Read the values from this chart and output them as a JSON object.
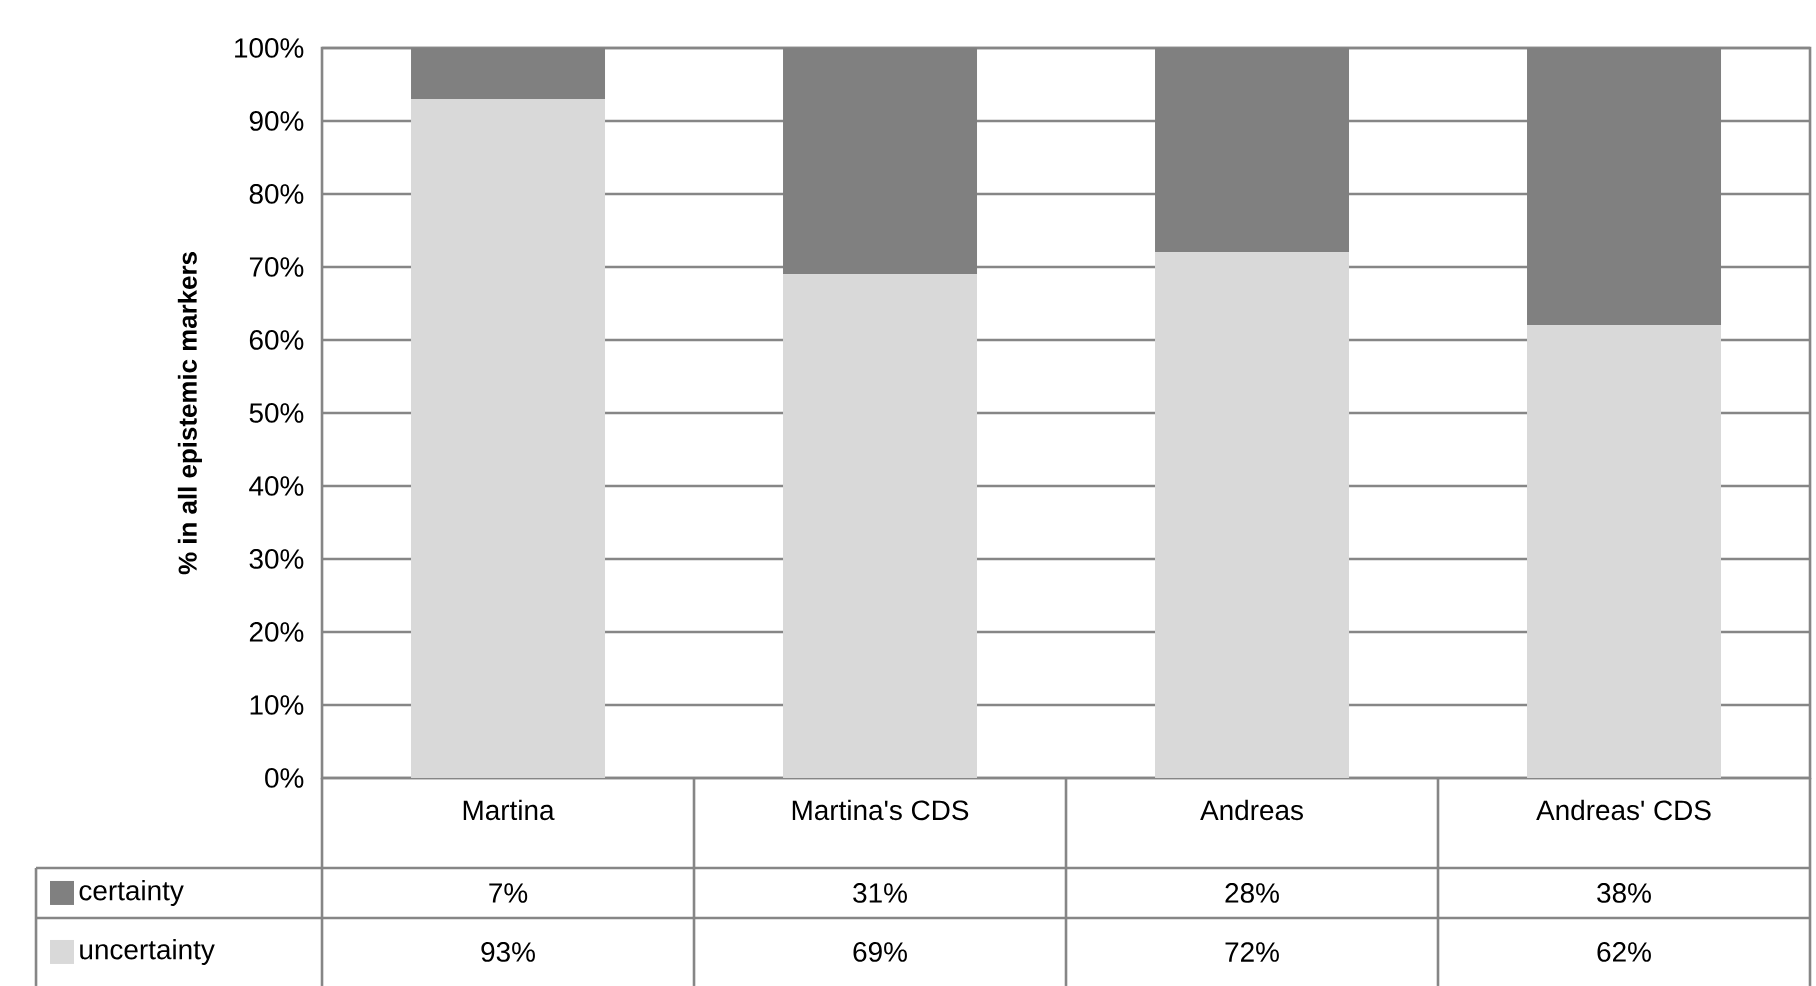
{
  "chart_data": {
    "type": "bar",
    "ylabel": "% in all epistemic markers",
    "categories": [
      "Martina",
      "Martina's CDS",
      "Andreas",
      "Andreas' CDS"
    ],
    "stacked": true,
    "series": [
      {
        "name": "uncertainty",
        "color": "#d9d9d9",
        "values": [
          93,
          69,
          72,
          62
        ],
        "value_labels": [
          "93%",
          "69%",
          "72%",
          "62%"
        ]
      },
      {
        "name": "certainty",
        "color": "#808080",
        "values": [
          7,
          31,
          28,
          38
        ],
        "value_labels": [
          "7%",
          "31%",
          "28%",
          "38%"
        ]
      }
    ],
    "ylim": [
      0,
      100
    ],
    "yticks": [
      {
        "value": 0,
        "label": "0%"
      },
      {
        "value": 10,
        "label": "10%"
      },
      {
        "value": 20,
        "label": "20%"
      },
      {
        "value": 30,
        "label": "30%"
      },
      {
        "value": 40,
        "label": "40%"
      },
      {
        "value": 50,
        "label": "50%"
      },
      {
        "value": 60,
        "label": "60%"
      },
      {
        "value": 70,
        "label": "70%"
      },
      {
        "value": 80,
        "label": "80%"
      },
      {
        "value": 90,
        "label": "90%"
      },
      {
        "value": 100,
        "label": "100%"
      }
    ],
    "grid": "y",
    "legend": "bottom left"
  }
}
